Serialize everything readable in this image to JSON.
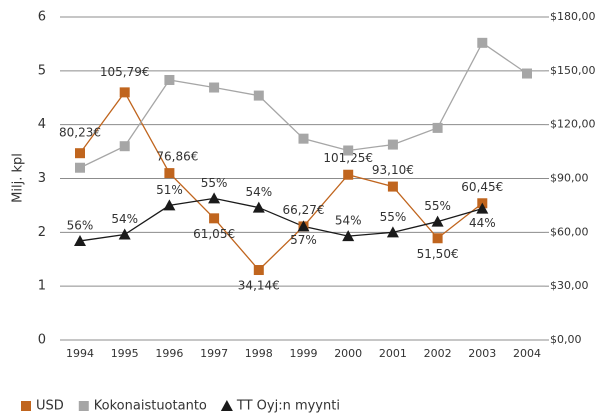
{
  "chart_data": {
    "type": "line",
    "y_label": "Milj. kpl",
    "categories": [
      "1994",
      "1995",
      "1996",
      "1997",
      "1998",
      "1999",
      "2000",
      "2001",
      "2002",
      "2003",
      "2004"
    ],
    "ylim": [
      0,
      6
    ],
    "yticks": [
      0,
      1,
      2,
      3,
      4,
      5,
      6
    ],
    "y2lim": [
      0,
      180
    ],
    "y2ticks": [
      {
        "value": 0,
        "label": "$0,00"
      },
      {
        "value": 30,
        "label": "$30,00"
      },
      {
        "value": 60,
        "label": "$60,00"
      },
      {
        "value": 90,
        "label": "$90,00"
      },
      {
        "value": 120,
        "label": "$120,00"
      },
      {
        "value": 150,
        "label": "$150,00"
      },
      {
        "value": 180,
        "label": "$180,00"
      }
    ],
    "grid": true,
    "legend": "bottom",
    "series": [
      {
        "name": "USD",
        "color": "#c0651e",
        "marker": "square",
        "values": [
          3.47,
          4.6,
          3.1,
          2.26,
          1.3,
          2.11,
          3.07,
          2.85,
          1.89,
          2.54,
          null
        ],
        "annotations": [
          "80,23€",
          "105,79€",
          "76,86€",
          "61,05€",
          "34,14€",
          "66,27€",
          "101,25€",
          "93,10€",
          "51,50€",
          "60,45€",
          null
        ]
      },
      {
        "name": "Kokonaistuotanto",
        "color": "#a6a6a6",
        "marker": "square",
        "values": [
          3.2,
          3.6,
          4.83,
          4.69,
          4.54,
          3.74,
          3.52,
          3.63,
          3.94,
          5.52,
          4.95
        ]
      },
      {
        "name": "TT Oyj:n myynti",
        "color": "#1a1a1a",
        "marker": "triangle",
        "values": [
          1.84,
          1.96,
          2.5,
          2.63,
          2.46,
          2.11,
          1.93,
          2.0,
          2.2,
          2.44,
          null
        ],
        "annotations": [
          "56%",
          "54%",
          "51%",
          "55%",
          "54%",
          "57%",
          "54%",
          "55%",
          "55%",
          "44%",
          null
        ]
      }
    ]
  }
}
